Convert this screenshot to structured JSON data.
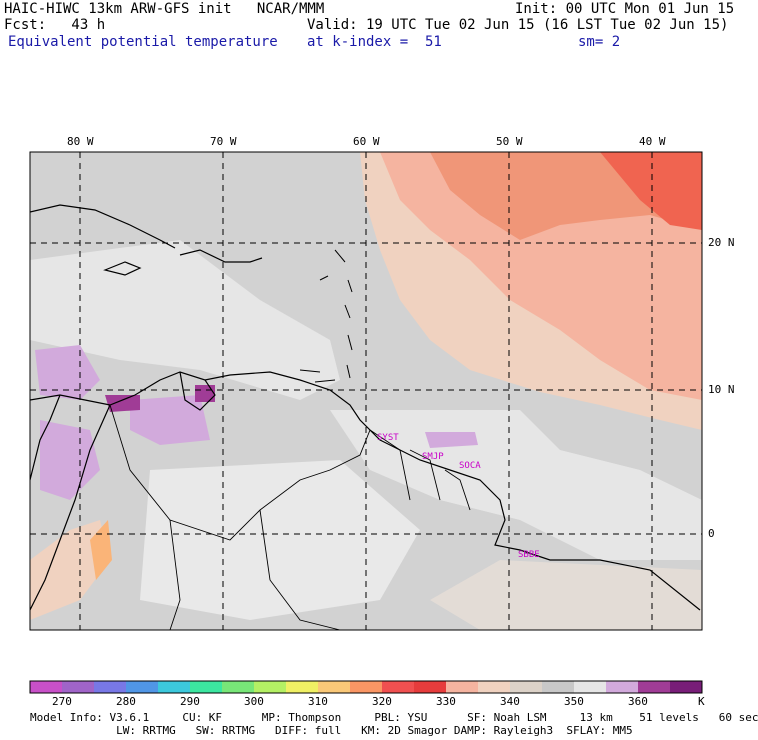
{
  "header": {
    "left1": "HAIC-HIWC 13km ARW-GFS init   NCAR/MMM",
    "left2": "Fcst:   43 h",
    "left3": "Equivalent potential temperature",
    "right1": "Init: 00 UTC Mon 01 Jun 15",
    "right2": "Valid: 19 UTC Tue 02 Jun 15 (16 LST Tue 02 Jun 15)",
    "level": "at k-index =  51",
    "smooth": "sm= 2"
  },
  "map": {
    "lon_labels": [
      "80 W",
      "70 W",
      "60 W",
      "50 W",
      "40 W"
    ],
    "lat_labels": [
      "20 N",
      "10 N",
      "0"
    ],
    "stations": [
      "SYST",
      "SMJP",
      "SOCA",
      "SBBE"
    ]
  },
  "colorbar": {
    "unit": "K",
    "tick_labels": [
      "270",
      "280",
      "290",
      "300",
      "310",
      "320",
      "330",
      "340",
      "350",
      "360"
    ],
    "colors": [
      "#c850c8",
      "#a064c8",
      "#7878e6",
      "#5096e6",
      "#3cc8dc",
      "#3ce6a0",
      "#78e678",
      "#b4f064",
      "#f0f064",
      "#fac878",
      "#fa9664",
      "#f05050",
      "#e63c3c",
      "#f5b4a0",
      "#f0d2c0",
      "#dcd2c8",
      "#c8c8c8",
      "#e6e6e6",
      "#d2aadc",
      "#a03c96",
      "#781e78"
    ]
  },
  "footer": {
    "line1": "Model Info: V3.6.1     CU: KF      MP: Thompson     PBL: YSU      SF: Noah LSM     13 km    51 levels   60 sec",
    "line2": "             LW: RRTMG   SW: RRTMG   DIFF: full   KM: 2D Smagor DAMP: Rayleigh3  SFLAY: MM5"
  }
}
